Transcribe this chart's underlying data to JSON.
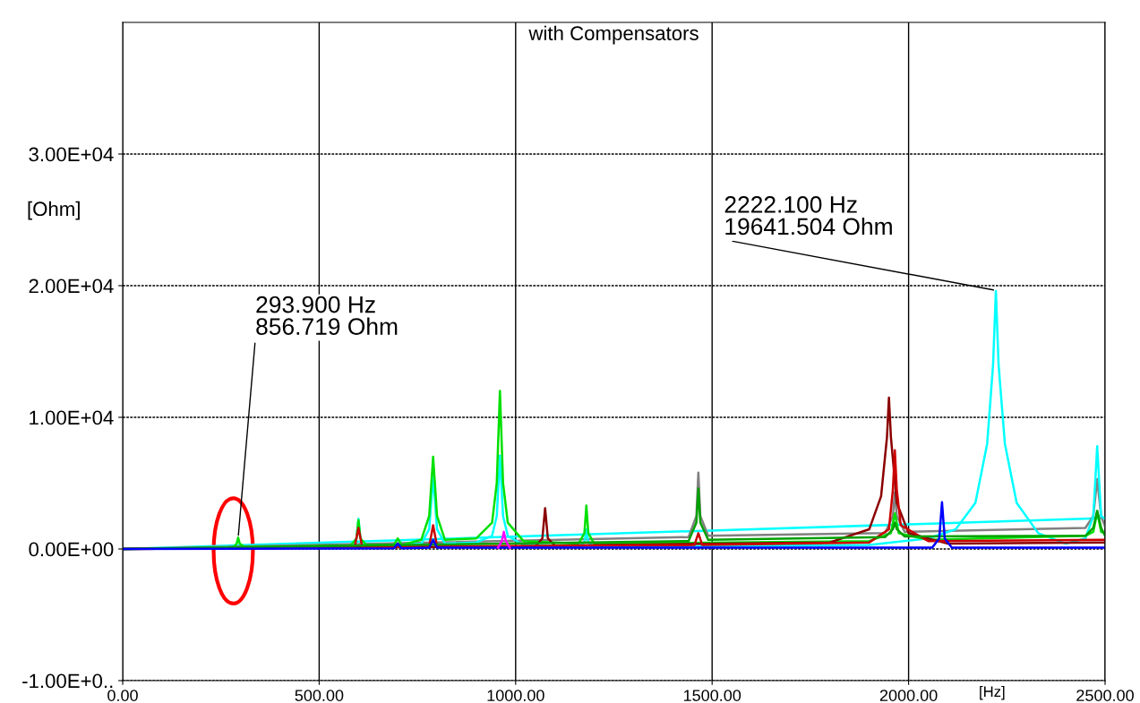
{
  "chart_data": {
    "type": "line",
    "title": "with Compensators",
    "xlabel": "[Hz]",
    "ylabel": "[Ohm]",
    "xlim": [
      0,
      2500
    ],
    "xticks": [
      {
        "value": 0,
        "label": "0.00"
      },
      {
        "value": 500,
        "label": "500.00"
      },
      {
        "value": 1000,
        "label": "1000.00"
      },
      {
        "value": 1500,
        "label": "1500.00"
      },
      {
        "value": 2000,
        "label": "2000.00"
      },
      {
        "value": 2500,
        "label": "2500.00"
      }
    ],
    "ylim": [
      -10000,
      40000
    ],
    "yticks": [
      {
        "value": -10000,
        "label": "-1.00E+0.."
      },
      {
        "value": 0,
        "label": "0.00E+00"
      },
      {
        "value": 10000,
        "label": "1.00E+04"
      },
      {
        "value": 20000,
        "label": "2.00E+04"
      },
      {
        "value": 30000,
        "label": "3.00E+04"
      }
    ],
    "grid": true,
    "marker": "none",
    "line_style": "solid",
    "annotations": [
      {
        "text": "293.900 Hz\n856.719 Ohm",
        "x": 293.9,
        "y": 856.719
      },
      {
        "text": "2222.100 Hz\n19641.504 Ohm",
        "x": 2222.1,
        "y": 19641.504
      }
    ],
    "series": [
      {
        "color": "#00ffff",
        "x": [
          0,
          2500
        ],
        "values": [
          0,
          2340
        ]
      },
      {
        "color": "#808080",
        "x": [
          0,
          1440,
          1460,
          1465,
          1470,
          1490,
          1940,
          1960,
          1965,
          1970,
          1990,
          2450,
          2470,
          2480,
          2490,
          2500
        ],
        "values": [
          0,
          900,
          2500,
          5800,
          2500,
          1000,
          1200,
          2500,
          4300,
          2500,
          1300,
          1600,
          2500,
          5300,
          2500,
          1700
        ]
      },
      {
        "color": "#00ffff",
        "x": [
          0,
          580,
          595,
          600,
          605,
          620,
          760,
          780,
          790,
          800,
          820,
          900,
          940,
          952,
          960,
          968,
          980,
          1020,
          1160,
          1175,
          1180,
          1185,
          1200,
          1900,
          2050,
          2120,
          2170,
          2200,
          2215,
          2222.1,
          2229,
          2245,
          2275,
          2330,
          2400,
          2450,
          2470,
          2480,
          2490,
          2500
        ],
        "values": [
          0,
          150,
          800,
          2300,
          800,
          150,
          400,
          1500,
          5500,
          1500,
          400,
          500,
          1000,
          2500,
          7100,
          2500,
          1000,
          300,
          150,
          500,
          1500,
          500,
          150,
          300,
          800,
          1500,
          3500,
          8000,
          14000,
          19600,
          14000,
          8000,
          3500,
          1200,
          400,
          800,
          2500,
          7800,
          2500,
          2300
        ]
      },
      {
        "color": "#00e000",
        "x": [
          0,
          280,
          290,
          293.9,
          298,
          310,
          580,
          595,
          600,
          605,
          620,
          690,
          700,
          710,
          760,
          780,
          790,
          800,
          820,
          900,
          940,
          952,
          960,
          968,
          980,
          1020,
          1160,
          1175,
          1180,
          1185,
          1200,
          1900,
          1955,
          1965,
          1975,
          2050,
          2450,
          2470,
          2480,
          2490,
          2500
        ],
        "values": [
          0,
          100,
          400,
          860,
          400,
          150,
          250,
          800,
          2200,
          800,
          300,
          300,
          800,
          300,
          700,
          2500,
          7000,
          2500,
          700,
          800,
          2000,
          5000,
          12000,
          5000,
          2000,
          600,
          400,
          1200,
          3300,
          1200,
          400,
          600,
          1200,
          2700,
          1200,
          700,
          1000,
          1300,
          2800,
          1300,
          1200
        ]
      },
      {
        "color": "#8b0000",
        "x": [
          0,
          1050,
          1068,
          1075,
          1082,
          1100,
          1800,
          1900,
          1930,
          1945,
          1950,
          1955,
          1970,
          2000,
          2100,
          2500
        ],
        "values": [
          0,
          200,
          800,
          3100,
          800,
          250,
          500,
          1500,
          4000,
          8500,
          11500,
          8500,
          3500,
          1200,
          400,
          500
        ]
      },
      {
        "color": "#cc0000",
        "x": [
          0,
          590,
          600,
          610,
          780,
          790,
          800,
          1455,
          1465,
          1475,
          1900,
          1950,
          1960,
          1965,
          1970,
          1980,
          2050,
          2500
        ],
        "values": [
          0,
          100,
          1600,
          100,
          200,
          1800,
          200,
          300,
          1200,
          300,
          500,
          1500,
          4500,
          7500,
          4500,
          1800,
          600,
          700
        ]
      },
      {
        "color": "#00a000",
        "x": [
          0,
          1440,
          1460,
          1465,
          1470,
          1490,
          1940,
          1960,
          1965,
          1970,
          1990,
          2450,
          2470,
          2480,
          2490,
          2500
        ],
        "values": [
          0,
          600,
          2000,
          4600,
          2000,
          700,
          900,
          1500,
          2000,
          1500,
          950,
          1000,
          1600,
          2900,
          1600,
          1000
        ]
      },
      {
        "color": "#0000ff",
        "x": [
          0,
          690,
          700,
          710,
          780,
          790,
          800,
          2060,
          2078,
          2085,
          2092,
          2110,
          2500
        ],
        "values": [
          0,
          50,
          400,
          50,
          100,
          700,
          100,
          100,
          800,
          3550,
          800,
          100,
          100
        ]
      },
      {
        "color": "#ff00ff",
        "x": [
          955,
          965,
          970,
          975,
          985
        ],
        "values": [
          100,
          600,
          1300,
          600,
          100
        ]
      }
    ]
  }
}
